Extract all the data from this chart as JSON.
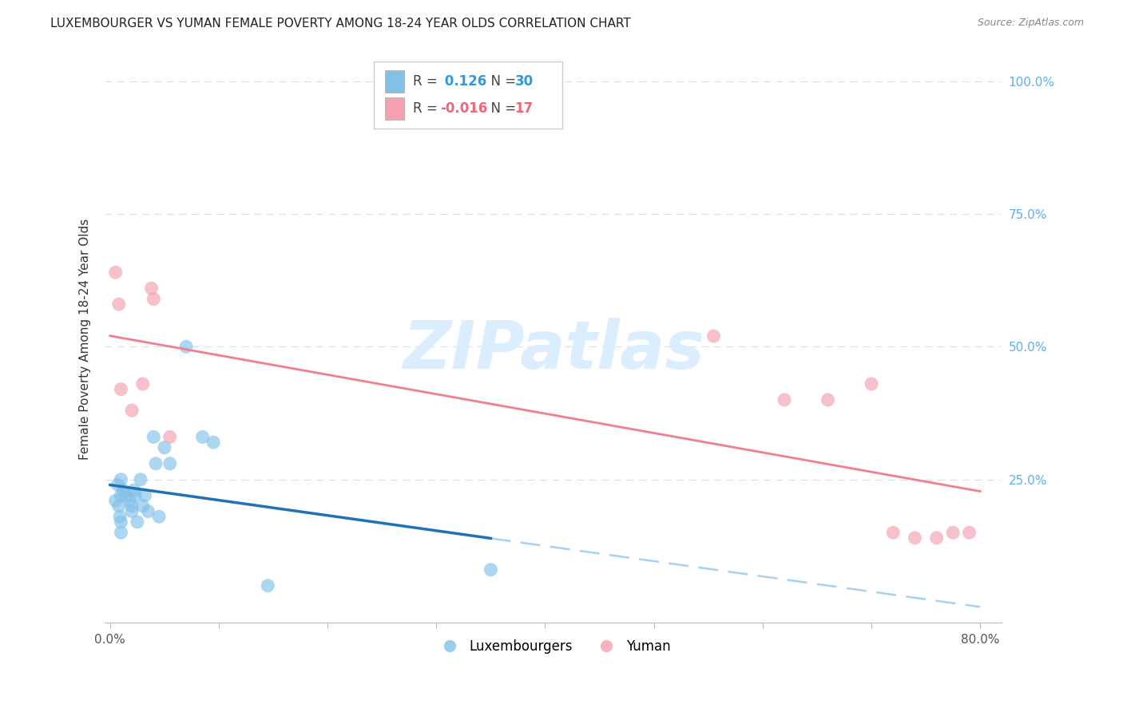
{
  "title": "LUXEMBOURGER VS YUMAN FEMALE POVERTY AMONG 18-24 YEAR OLDS CORRELATION CHART",
  "source": "Source: ZipAtlas.com",
  "ylabel": "Female Poverty Among 18-24 Year Olds",
  "xlim": [
    -0.005,
    0.82
  ],
  "ylim": [
    -0.02,
    1.05
  ],
  "xticks": [
    0.0,
    0.1,
    0.2,
    0.3,
    0.4,
    0.5,
    0.6,
    0.7,
    0.8
  ],
  "xticklabels": [
    "0.0%",
    "",
    "",
    "",
    "",
    "",
    "",
    "",
    "80.0%"
  ],
  "ytick_labels_right": [
    "100.0%",
    "75.0%",
    "50.0%",
    "25.0%"
  ],
  "ytick_vals_right": [
    1.0,
    0.75,
    0.5,
    0.25
  ],
  "blue_R": 0.126,
  "blue_N": 30,
  "pink_R": -0.016,
  "pink_N": 17,
  "luxembourger_x": [
    0.005,
    0.007,
    0.008,
    0.009,
    0.01,
    0.01,
    0.01,
    0.01,
    0.012,
    0.015,
    0.018,
    0.02,
    0.02,
    0.022,
    0.023,
    0.025,
    0.028,
    0.03,
    0.032,
    0.035,
    0.04,
    0.042,
    0.045,
    0.05,
    0.055,
    0.07,
    0.085,
    0.095,
    0.145,
    0.35
  ],
  "luxembourger_y": [
    0.21,
    0.24,
    0.2,
    0.18,
    0.22,
    0.25,
    0.17,
    0.15,
    0.23,
    0.22,
    0.21,
    0.2,
    0.19,
    0.23,
    0.22,
    0.17,
    0.25,
    0.2,
    0.22,
    0.19,
    0.33,
    0.28,
    0.18,
    0.31,
    0.28,
    0.5,
    0.33,
    0.32,
    0.05,
    0.08
  ],
  "yuman_x": [
    0.005,
    0.008,
    0.01,
    0.02,
    0.03,
    0.038,
    0.04,
    0.055,
    0.555,
    0.62,
    0.66,
    0.7,
    0.72,
    0.74,
    0.76,
    0.775,
    0.79
  ],
  "yuman_y": [
    0.64,
    0.58,
    0.42,
    0.38,
    0.43,
    0.61,
    0.59,
    0.33,
    0.52,
    0.4,
    0.4,
    0.43,
    0.15,
    0.14,
    0.14,
    0.15,
    0.15
  ],
  "blue_color": "#82c0e8",
  "pink_color": "#f4a0b0",
  "blue_line_color": "#2171b5",
  "pink_line_color": "#f08090",
  "blue_dash_color": "#a8d0f0",
  "watermark_color": "#daeeff",
  "grid_color": "#dddddd",
  "right_tick_color": "#5ab0f0"
}
